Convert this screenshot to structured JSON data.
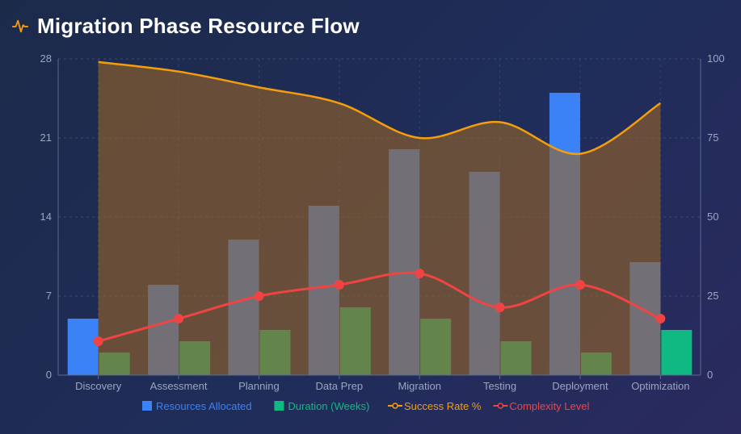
{
  "title": "Migration Phase Resource Flow",
  "icon": "activity-pulse-icon",
  "chart_data": {
    "type": "bar",
    "categories": [
      "Discovery",
      "Assessment",
      "Planning",
      "Data Prep",
      "Migration",
      "Testing",
      "Deployment",
      "Optimization"
    ],
    "left_axis": {
      "ylim": [
        0,
        28
      ],
      "ticks": [
        0,
        7,
        14,
        21,
        28
      ]
    },
    "right_axis": {
      "ylim": [
        0,
        100
      ],
      "ticks": [
        0,
        25,
        50,
        75,
        100
      ]
    },
    "grid": true,
    "legend_position": "bottom-center",
    "series": [
      {
        "name": "Resources Allocated",
        "kind": "bar",
        "axis": "left",
        "color": "#3b82f6",
        "values": [
          5,
          8,
          12,
          15,
          20,
          18,
          25,
          10
        ]
      },
      {
        "name": "Duration (Weeks)",
        "kind": "bar",
        "axis": "left",
        "color": "#10b981",
        "values": [
          2,
          3,
          4,
          6,
          5,
          3,
          2,
          4
        ]
      },
      {
        "name": "Success Rate %",
        "kind": "area-line",
        "axis": "right",
        "color": "#f59e0b",
        "values": [
          99,
          96,
          91,
          86,
          75,
          80,
          70,
          86
        ]
      },
      {
        "name": "Complexity Level",
        "kind": "line",
        "axis": "left",
        "color": "#ef4444",
        "values": [
          3,
          5,
          7,
          8,
          9,
          6,
          8,
          5
        ]
      }
    ]
  }
}
